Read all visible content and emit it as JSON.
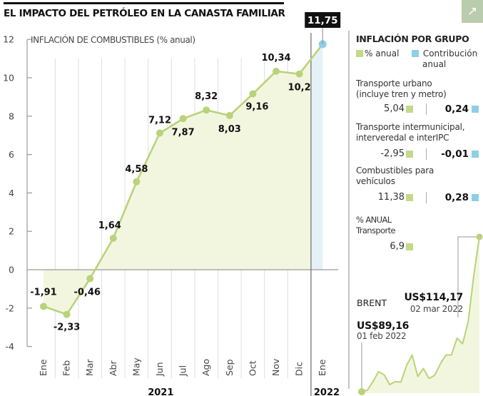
{
  "title": "EL IMPACTO DEL PETRÓLEO EN LA CANASTA FAMILIAR",
  "expand_icon": "arrow-up-right-icon",
  "colors": {
    "line": "#b8d37a",
    "fill": "#f3f6df",
    "highlight_fill": "#e4f2f7",
    "highlight_point": "#8ecfe6",
    "accent_button": "#b9ccad",
    "label_box": "#111111"
  },
  "chart_data": [
    {
      "type": "line",
      "title": "INFLACIÓN DE COMBUSTIBLES (% anual)",
      "xlabel": "",
      "ylabel": "",
      "ylim": [
        -4,
        12
      ],
      "yticks": [
        "12",
        "10",
        "8",
        "6",
        "4",
        "2",
        "0",
        "-2",
        "-4"
      ],
      "ytick_values": [
        12,
        10,
        8,
        6,
        4,
        2,
        0,
        -2,
        -4
      ],
      "grid": "vertical",
      "categories": [
        "Ene",
        "Feb",
        "Mar",
        "Abr",
        "May",
        "Jun",
        "Jul",
        "Ago",
        "Sep",
        "Oct",
        "Nov",
        "Dic",
        "Ene"
      ],
      "year_labels": [
        {
          "label": "2021",
          "from": 0,
          "to": 11
        },
        {
          "label": "2022",
          "from": 12,
          "to": 12
        }
      ],
      "values": [
        -1.91,
        -2.33,
        -0.46,
        1.64,
        4.58,
        7.12,
        7.87,
        8.32,
        8.03,
        9.16,
        10.34,
        10.2,
        11.75
      ],
      "value_labels": [
        "-1,91",
        "-2,33",
        "-0,46",
        "1,64",
        "4,58",
        "7,12",
        "7,87",
        "8,32",
        "8,03",
        "9,16",
        "10,34",
        "10,2",
        "11,75"
      ],
      "highlight_index": 12
    },
    {
      "type": "area",
      "title": "BRENT",
      "series_name": "BRENT",
      "values": [
        89.16,
        89.4,
        90.8,
        92.4,
        91.9,
        90.3,
        90.8,
        90.7,
        93.4,
        95.1,
        91.6,
        92.9,
        91.3,
        91.8,
        93.6,
        95.1,
        95.1,
        97.8,
        96.9,
        100.5,
        108.0,
        114.17
      ],
      "annotations": [
        {
          "index": 0,
          "value": "US$89,16",
          "date": "01 feb 2022"
        },
        {
          "index": 21,
          "value": "US$114,17",
          "date": "02 mar 2022"
        }
      ]
    }
  ],
  "side_panel": {
    "title": "INFLACIÓN POR GRUPO",
    "legend": {
      "pct": "% anual",
      "contrib_line1": "Contribución",
      "contrib_line2": "anual"
    },
    "items": [
      {
        "label_line1": "Transporte urbano",
        "label_line2": "(incluye tren y metro)",
        "pct": "5,04",
        "contrib": "0,24"
      },
      {
        "label_line1": "Transporte intermunicipal,",
        "label_line2": "interveredal e interIPC",
        "pct": "-2,95",
        "contrib": "-0,01"
      },
      {
        "label_line1": "Combustibles para",
        "label_line2": "vehículos",
        "pct": "11,38",
        "contrib": "0,28"
      }
    ],
    "annual": {
      "label_line1": "% ANUAL",
      "label_line2": "Transporte",
      "value": "6,9"
    }
  }
}
